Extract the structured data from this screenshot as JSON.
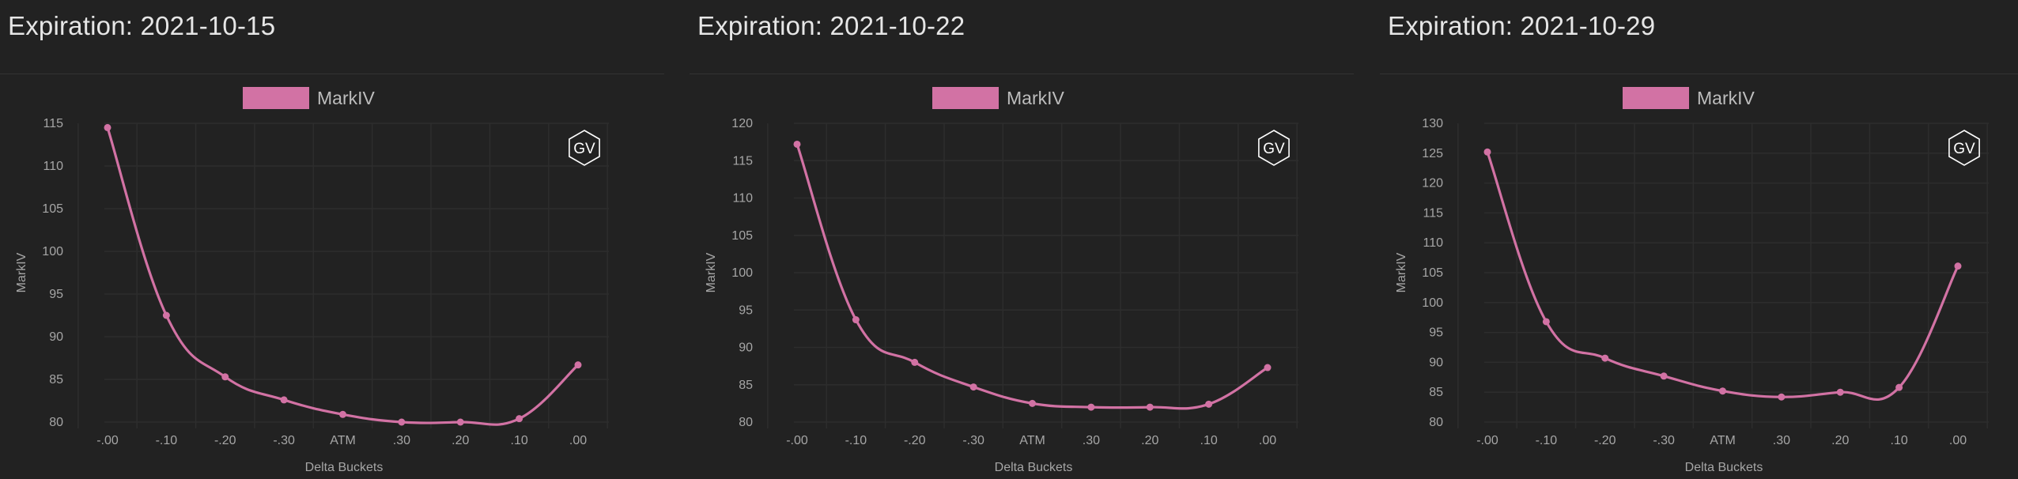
{
  "colors": {
    "background": "#222222",
    "series": "#d272a4",
    "grid": "#2d2d2d",
    "text": "#a6a6a6",
    "title": "#e6e6e6"
  },
  "logo_text": "GV",
  "panels": [
    {
      "title": "Expiration: 2021-10-15"
    },
    {
      "title": "Expiration: 2021-10-22"
    },
    {
      "title": "Expiration: 2021-10-29"
    }
  ],
  "chart_data": [
    {
      "type": "line",
      "title": "Expiration: 2021-10-15",
      "xlabel": "Delta Buckets",
      "ylabel": "MarkIV",
      "categories": [
        "-.00",
        "-.10",
        "-.20",
        "-.30",
        "ATM",
        ".30",
        ".20",
        ".10",
        ".00"
      ],
      "series": [
        {
          "name": "MarkIV",
          "values": [
            114.5,
            92.5,
            85.3,
            82.6,
            80.9,
            80.0,
            80.0,
            80.4,
            86.7
          ]
        }
      ],
      "ylim": [
        80,
        115
      ],
      "yticks": [
        80,
        85,
        90,
        95,
        100,
        105,
        110,
        115
      ],
      "legend": "top-center",
      "grid": true
    },
    {
      "type": "line",
      "title": "Expiration: 2021-10-22",
      "xlabel": "Delta Buckets",
      "ylabel": "MarkIV",
      "categories": [
        "-.00",
        "-.10",
        "-.20",
        "-.30",
        "ATM",
        ".30",
        ".20",
        ".10",
        ".00"
      ],
      "series": [
        {
          "name": "MarkIV",
          "values": [
            117.2,
            93.7,
            88.0,
            84.7,
            82.5,
            82.0,
            82.0,
            82.4,
            87.3
          ]
        }
      ],
      "ylim": [
        80,
        120
      ],
      "yticks": [
        80,
        85,
        90,
        95,
        100,
        105,
        110,
        115,
        120
      ],
      "legend": "top-center",
      "grid": true
    },
    {
      "type": "line",
      "title": "Expiration: 2021-10-29",
      "xlabel": "Delta Buckets",
      "ylabel": "MarkIV",
      "categories": [
        "-.00",
        "-.10",
        "-.20",
        "-.30",
        "ATM",
        ".30",
        ".20",
        ".10",
        ".00"
      ],
      "series": [
        {
          "name": "MarkIV",
          "values": [
            125.2,
            96.8,
            90.7,
            87.7,
            85.2,
            84.2,
            85.0,
            85.8,
            106.1
          ]
        }
      ],
      "ylim": [
        80,
        130
      ],
      "yticks": [
        80,
        85,
        90,
        95,
        100,
        105,
        110,
        115,
        120,
        125,
        130
      ],
      "legend": "top-center",
      "grid": true
    }
  ]
}
